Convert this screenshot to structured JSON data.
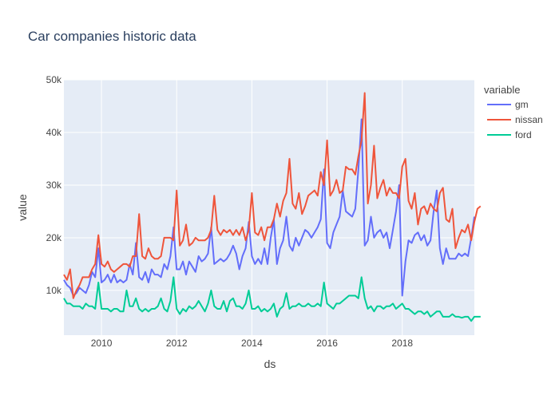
{
  "chart_data": {
    "type": "line",
    "title": "Car companies historic data",
    "xlabel": "ds",
    "ylabel": "value",
    "xlim": [
      2009.0,
      2019.917
    ],
    "ylim": [
      1500,
      50000
    ],
    "x_ticks": [
      2010,
      2012,
      2014,
      2016,
      2018
    ],
    "x_tick_labels": [
      "2010",
      "2012",
      "2014",
      "2016",
      "2018"
    ],
    "y_ticks": [
      10000,
      20000,
      30000,
      40000,
      50000
    ],
    "y_tick_labels": [
      "10k",
      "20k",
      "30k",
      "40k",
      "50k"
    ],
    "legend_title": "variable",
    "legend_position": "right",
    "background": "#E5ECF6",
    "grid": true,
    "x_start": "2009-01",
    "x_step": "monthly",
    "series": [
      {
        "name": "gm",
        "color": "#636EFA",
        "values": [
          12000,
          11000,
          10500,
          9000,
          9500,
          10500,
          10000,
          9500,
          11000,
          13500,
          12500,
          18000,
          11500,
          12000,
          13000,
          11500,
          13000,
          11500,
          12000,
          11500,
          12000,
          15000,
          13000,
          19000,
          12500,
          12000,
          13500,
          11500,
          14000,
          13000,
          13000,
          12500,
          15000,
          14000,
          16500,
          22000,
          14000,
          14000,
          15500,
          13000,
          15500,
          14500,
          13500,
          16500,
          15500,
          16000,
          17000,
          22000,
          15000,
          15500,
          16000,
          15500,
          16000,
          17000,
          18500,
          17000,
          14000,
          16500,
          18000,
          23000,
          16500,
          15000,
          16000,
          15000,
          18000,
          15000,
          20000,
          23500,
          15000,
          18000,
          19500,
          24000,
          18500,
          17500,
          20000,
          18500,
          20000,
          21500,
          21000,
          20000,
          21000,
          22000,
          23500,
          33000,
          19000,
          18000,
          21000,
          22500,
          24000,
          29000,
          25000,
          24500,
          24000,
          25500,
          33000,
          42500,
          18500,
          19500,
          24000,
          20000,
          21000,
          21500,
          20000,
          21000,
          18000,
          21500,
          25000,
          30000,
          9000,
          15500,
          19500,
          19000,
          20500,
          21000,
          19500,
          20500,
          18500,
          19500,
          25000,
          29000,
          18000,
          15000,
          18000,
          16000,
          16000,
          16000,
          17000,
          16500,
          17000,
          16500,
          20000,
          24000
        ]
      },
      {
        "name": "nissan",
        "color": "#EF553B",
        "values": [
          13000,
          12000,
          14000,
          8500,
          10000,
          11000,
          12500,
          12500,
          12500,
          14000,
          15000,
          20500,
          15000,
          14500,
          15500,
          14000,
          13500,
          14000,
          14500,
          15000,
          15000,
          14500,
          16500,
          16500,
          24500,
          16500,
          16000,
          18000,
          16500,
          16000,
          16000,
          16500,
          20000,
          20000,
          20000,
          19500,
          29000,
          18500,
          19500,
          22500,
          18500,
          19000,
          20000,
          19500,
          19500,
          19500,
          20000,
          21500,
          28000,
          21500,
          20500,
          21500,
          21000,
          21500,
          20500,
          21500,
          20500,
          22000,
          19500,
          21500,
          28500,
          21000,
          20500,
          22000,
          19500,
          22000,
          22000,
          23500,
          26500,
          24000,
          27000,
          28500,
          35000,
          26500,
          25500,
          28500,
          24500,
          26000,
          28000,
          28500,
          29000,
          28000,
          32500,
          30000,
          38500,
          28000,
          29000,
          31000,
          28500,
          29000,
          33500,
          33000,
          33000,
          32000,
          35500,
          38500,
          47500,
          26500,
          30000,
          37500,
          27500,
          29500,
          31000,
          28000,
          29500,
          28500,
          28500,
          27500,
          33500,
          35000,
          27000,
          25500,
          28500,
          22500,
          25500,
          26000,
          24500,
          26500,
          25500,
          25000,
          28500,
          29500,
          23500,
          23000,
          25500,
          18000,
          20000,
          21500,
          21000,
          22500,
          19500,
          23000,
          25500,
          26000
        ]
      },
      {
        "name": "ford",
        "color": "#00CC96",
        "values": [
          8500,
          7500,
          7500,
          7000,
          7000,
          7000,
          6500,
          7500,
          7000,
          7000,
          6500,
          11500,
          6500,
          6500,
          6500,
          6000,
          6500,
          6500,
          6000,
          6000,
          10000,
          7000,
          7000,
          8500,
          6500,
          6000,
          6500,
          6000,
          6500,
          6500,
          7000,
          8500,
          6500,
          6000,
          8000,
          12500,
          6500,
          5500,
          6500,
          6000,
          7000,
          6500,
          7000,
          8000,
          7000,
          6000,
          7500,
          10000,
          7000,
          6500,
          6500,
          8000,
          6000,
          8000,
          8500,
          7000,
          7000,
          6500,
          7500,
          10000,
          6500,
          6500,
          7000,
          6000,
          6500,
          6000,
          6500,
          7500,
          5000,
          6500,
          7000,
          9500,
          6500,
          7000,
          7000,
          7500,
          7000,
          7000,
          7500,
          7000,
          7000,
          7500,
          7000,
          11500,
          7500,
          7000,
          6500,
          7500,
          7500,
          8000,
          8500,
          9000,
          9000,
          9000,
          8500,
          12500,
          8500,
          6500,
          7000,
          6000,
          7000,
          7000,
          6500,
          7000,
          7000,
          7500,
          6500,
          7000,
          7500,
          6500,
          6500,
          6000,
          5500,
          6000,
          6000,
          5500,
          6000,
          5000,
          5500,
          6000,
          6000,
          5000,
          5000,
          5000,
          5500,
          5000,
          5000,
          4800,
          5000,
          5000,
          4200,
          5000,
          5000,
          5000
        ]
      }
    ]
  }
}
